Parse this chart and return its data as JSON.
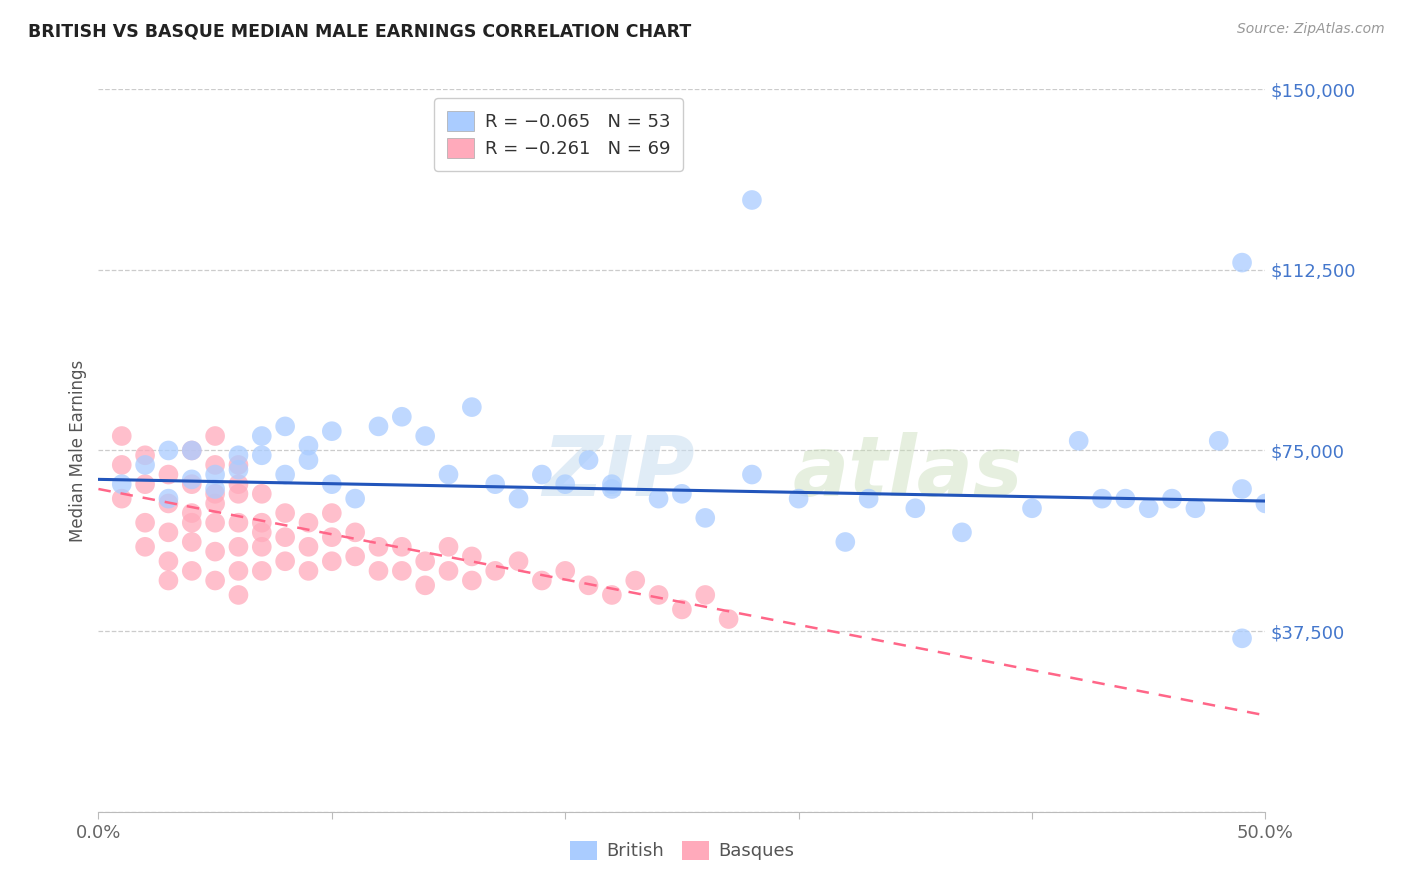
{
  "title": "BRITISH VS BASQUE MEDIAN MALE EARNINGS CORRELATION CHART",
  "source": "Source: ZipAtlas.com",
  "ylabel": "Median Male Earnings",
  "xlim": [
    0.0,
    0.5
  ],
  "ylim": [
    0,
    150000
  ],
  "yticks": [
    0,
    37500,
    75000,
    112500,
    150000
  ],
  "ytick_labels": [
    "",
    "$37,500",
    "$75,000",
    "$112,500",
    "$150,000"
  ],
  "xticks": [
    0.0,
    0.1,
    0.2,
    0.3,
    0.4,
    0.5
  ],
  "xtick_labels": [
    "0.0%",
    "",
    "",
    "",
    "",
    "50.0%"
  ],
  "background_color": "#ffffff",
  "grid_color": "#cccccc",
  "british_color": "#aaccff",
  "basque_color": "#ffaabb",
  "british_line_color": "#2255bb",
  "basque_line_color": "#ff6688",
  "watermark_text": "ZIPatlas",
  "watermark_color": "#c8ddf0",
  "legend_R_british": "R = −0.065",
  "legend_N_british": "N = 53",
  "legend_R_basque": "R = −0.261",
  "legend_N_basque": "N = 69",
  "british_line_x": [
    0.0,
    0.5
  ],
  "british_line_y": [
    69000,
    64500
  ],
  "basque_line_x": [
    0.0,
    0.5
  ],
  "basque_line_y": [
    67000,
    20000
  ],
  "british_x": [
    0.01,
    0.02,
    0.03,
    0.03,
    0.04,
    0.04,
    0.05,
    0.05,
    0.06,
    0.06,
    0.07,
    0.07,
    0.08,
    0.08,
    0.09,
    0.09,
    0.1,
    0.1,
    0.11,
    0.12,
    0.13,
    0.14,
    0.15,
    0.16,
    0.17,
    0.18,
    0.19,
    0.2,
    0.21,
    0.22,
    0.24,
    0.25,
    0.26,
    0.28,
    0.3,
    0.32,
    0.33,
    0.35,
    0.37,
    0.4,
    0.42,
    0.43,
    0.44,
    0.45,
    0.46,
    0.47,
    0.48,
    0.49,
    0.49,
    0.5,
    0.28,
    0.22,
    0.49
  ],
  "british_y": [
    68000,
    72000,
    65000,
    75000,
    69000,
    75000,
    70000,
    67000,
    74000,
    71000,
    78000,
    74000,
    80000,
    70000,
    76000,
    73000,
    79000,
    68000,
    65000,
    80000,
    82000,
    78000,
    70000,
    84000,
    68000,
    65000,
    70000,
    68000,
    73000,
    67000,
    65000,
    66000,
    61000,
    70000,
    65000,
    56000,
    65000,
    63000,
    58000,
    63000,
    77000,
    65000,
    65000,
    63000,
    65000,
    63000,
    77000,
    67000,
    36000,
    64000,
    127000,
    68000,
    114000
  ],
  "basque_x": [
    0.01,
    0.01,
    0.01,
    0.02,
    0.02,
    0.02,
    0.02,
    0.03,
    0.03,
    0.03,
    0.03,
    0.04,
    0.04,
    0.04,
    0.04,
    0.04,
    0.05,
    0.05,
    0.05,
    0.05,
    0.05,
    0.05,
    0.06,
    0.06,
    0.06,
    0.06,
    0.06,
    0.06,
    0.07,
    0.07,
    0.07,
    0.07,
    0.08,
    0.08,
    0.08,
    0.09,
    0.09,
    0.09,
    0.1,
    0.1,
    0.1,
    0.11,
    0.11,
    0.12,
    0.12,
    0.13,
    0.13,
    0.14,
    0.14,
    0.15,
    0.15,
    0.16,
    0.16,
    0.17,
    0.18,
    0.19,
    0.2,
    0.21,
    0.22,
    0.23,
    0.24,
    0.25,
    0.26,
    0.27,
    0.03,
    0.04,
    0.05,
    0.06,
    0.07
  ],
  "basque_y": [
    72000,
    65000,
    78000,
    74000,
    68000,
    60000,
    55000,
    70000,
    64000,
    58000,
    52000,
    75000,
    68000,
    62000,
    56000,
    50000,
    78000,
    72000,
    66000,
    60000,
    54000,
    48000,
    72000,
    66000,
    60000,
    55000,
    50000,
    45000,
    66000,
    60000,
    55000,
    50000,
    62000,
    57000,
    52000,
    60000,
    55000,
    50000,
    62000,
    57000,
    52000,
    58000,
    53000,
    55000,
    50000,
    55000,
    50000,
    52000,
    47000,
    55000,
    50000,
    53000,
    48000,
    50000,
    52000,
    48000,
    50000,
    47000,
    45000,
    48000,
    45000,
    42000,
    45000,
    40000,
    48000,
    60000,
    64000,
    68000,
    58000
  ]
}
